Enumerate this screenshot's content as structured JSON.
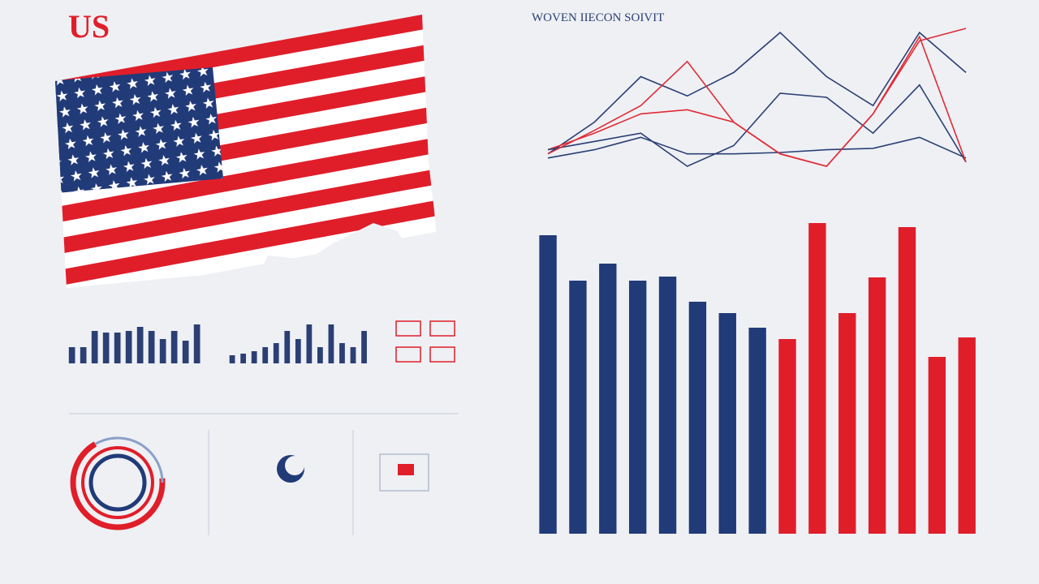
{
  "logo": "US",
  "chart_data": [
    {
      "type": "line",
      "title": "WOVEN IIECON SOIVIT",
      "categories": [
        null,
        null,
        null,
        null,
        null,
        null,
        null,
        null,
        null,
        null
      ],
      "ylim": [
        0,
        100
      ],
      "series": [
        {
          "name": null,
          "color": "#2b3f74",
          "values": [
            9,
            32,
            65,
            51,
            68,
            97,
            65,
            44,
            97,
            68
          ]
        },
        {
          "name": null,
          "color": "#e02b36",
          "values": [
            12,
            24,
            38,
            41,
            32,
            9,
            0,
            38,
            91,
            100
          ]
        },
        {
          "name": null,
          "color": "#2b3f74",
          "values": [
            12,
            18,
            24,
            0,
            15,
            53,
            50,
            24,
            59,
            3
          ]
        },
        {
          "name": null,
          "color": "#2b3f74",
          "values": [
            6,
            12,
            21,
            9,
            9,
            10,
            12,
            13,
            21,
            6
          ]
        },
        {
          "name": null,
          "color": "#e02b36",
          "values": [
            9,
            26,
            44,
            76,
            32,
            9,
            0,
            38,
            94,
            3
          ]
        }
      ]
    },
    {
      "type": "bar",
      "categories": [
        null,
        null,
        null,
        null,
        null,
        null,
        null,
        null,
        null,
        null,
        null,
        null,
        null,
        null,
        null
      ],
      "values": [
        368,
        312,
        333,
        312,
        317,
        286,
        272,
        254,
        240,
        383,
        272,
        316,
        378,
        218,
        242
      ],
      "colors": [
        "#213a78",
        "#213a78",
        "#213a78",
        "#213a78",
        "#213a78",
        "#213a78",
        "#213a78",
        "#213a78",
        "#e01e2a",
        "#e01e2a",
        "#e01e2a",
        "#e01e2a",
        "#e01e2a",
        "#e01e2a",
        "#e01e2a"
      ],
      "ylim": [
        0,
        400
      ]
    },
    {
      "type": "bar",
      "categories": [
        null,
        null,
        null,
        null,
        null,
        null,
        null,
        null,
        null,
        null,
        null,
        null
      ],
      "values": [
        20,
        20,
        40,
        38,
        38,
        40,
        45,
        40,
        30,
        40,
        28,
        48
      ],
      "color": "#2b3f74",
      "ylim": [
        0,
        50
      ]
    },
    {
      "type": "bar",
      "categories": [
        null,
        null,
        null,
        null,
        null,
        null,
        null,
        null,
        null,
        null,
        null,
        null,
        null
      ],
      "values": [
        10,
        12,
        15,
        20,
        25,
        40,
        30,
        48,
        20,
        48,
        25,
        20,
        40
      ],
      "color": "#2b3f74",
      "ylim": [
        0,
        50
      ]
    }
  ]
}
